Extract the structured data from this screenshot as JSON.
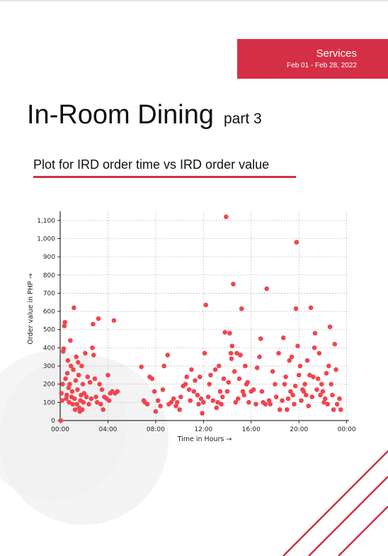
{
  "header": {
    "section": "Services",
    "date_range": "Feb 01 - Feb 28, 2022"
  },
  "page": {
    "title": "In-Room Dining",
    "part": "part 3",
    "subtitle": "Plot for IRD order time vs IRD order value"
  },
  "colors": {
    "accent": "#d42f45",
    "points": "#f0454f"
  },
  "chart_data": {
    "type": "scatter",
    "title": "Plot for IRD order time vs IRD order value",
    "xlabel": "Time in Hours  →",
    "ylabel": "Order value in PHP →",
    "xlim": [
      0,
      24.2
    ],
    "ylim": [
      0,
      1150
    ],
    "x_ticks": [
      "00:00",
      "04:00",
      "08:00",
      "12:00",
      "16:00",
      "20:00",
      "00:00"
    ],
    "y_ticks": [
      0,
      100,
      200,
      300,
      400,
      500,
      600,
      700,
      800,
      900,
      "1,000",
      "1,100"
    ],
    "grid": true,
    "points": [
      [
        0.05,
        0
      ],
      [
        0.1,
        150
      ],
      [
        0.15,
        110
      ],
      [
        0.2,
        200
      ],
      [
        0.25,
        380
      ],
      [
        0.3,
        395
      ],
      [
        0.35,
        520
      ],
      [
        0.4,
        540
      ],
      [
        0.45,
        230
      ],
      [
        0.5,
        120
      ],
      [
        0.55,
        140
      ],
      [
        0.6,
        260
      ],
      [
        0.65,
        330
      ],
      [
        0.7,
        180
      ],
      [
        0.75,
        100
      ],
      [
        0.8,
        200
      ],
      [
        0.85,
        440
      ],
      [
        0.9,
        300
      ],
      [
        0.95,
        130
      ],
      [
        1.0,
        160
      ],
      [
        1.05,
        90
      ],
      [
        1.1,
        280
      ],
      [
        1.15,
        620
      ],
      [
        1.2,
        120
      ],
      [
        1.25,
        60
      ],
      [
        1.3,
        220
      ],
      [
        1.35,
        350
      ],
      [
        1.4,
        90
      ],
      [
        1.45,
        170
      ],
      [
        1.5,
        320
      ],
      [
        1.55,
        250
      ],
      [
        1.6,
        70
      ],
      [
        1.65,
        50
      ],
      [
        1.7,
        110
      ],
      [
        1.75,
        140
      ],
      [
        1.8,
        300
      ],
      [
        1.85,
        60
      ],
      [
        1.9,
        200
      ],
      [
        1.95,
        100
      ],
      [
        2.0,
        150
      ],
      [
        2.1,
        370
      ],
      [
        2.2,
        130
      ],
      [
        2.3,
        240
      ],
      [
        2.4,
        90
      ],
      [
        2.5,
        210
      ],
      [
        2.6,
        120
      ],
      [
        2.7,
        400
      ],
      [
        2.75,
        530
      ],
      [
        2.8,
        360
      ],
      [
        2.9,
        230
      ],
      [
        3.0,
        130
      ],
      [
        3.1,
        100
      ],
      [
        3.2,
        560
      ],
      [
        3.3,
        200
      ],
      [
        3.4,
        90
      ],
      [
        3.5,
        170
      ],
      [
        3.6,
        60
      ],
      [
        3.7,
        130
      ],
      [
        3.9,
        120
      ],
      [
        4.0,
        250
      ],
      [
        4.1,
        110
      ],
      [
        4.2,
        150
      ],
      [
        4.35,
        160
      ],
      [
        4.5,
        550
      ],
      [
        4.6,
        150
      ],
      [
        4.8,
        160
      ],
      [
        6.8,
        295
      ],
      [
        7.0,
        110
      ],
      [
        7.1,
        100
      ],
      [
        7.3,
        90
      ],
      [
        7.5,
        240
      ],
      [
        7.7,
        230
      ],
      [
        7.9,
        160
      ],
      [
        8.0,
        50
      ],
      [
        8.2,
        110
      ],
      [
        8.4,
        80
      ],
      [
        8.6,
        170
      ],
      [
        8.7,
        300
      ],
      [
        9.0,
        360
      ],
      [
        9.1,
        90
      ],
      [
        9.3,
        100
      ],
      [
        9.5,
        120
      ],
      [
        9.7,
        80
      ],
      [
        9.8,
        100
      ],
      [
        10.0,
        60
      ],
      [
        10.1,
        130
      ],
      [
        10.3,
        190
      ],
      [
        10.5,
        200
      ],
      [
        10.6,
        240
      ],
      [
        10.8,
        170
      ],
      [
        10.9,
        110
      ],
      [
        11.0,
        280
      ],
      [
        11.2,
        160
      ],
      [
        11.3,
        220
      ],
      [
        11.5,
        140
      ],
      [
        11.6,
        90
      ],
      [
        11.7,
        240
      ],
      [
        11.8,
        120
      ],
      [
        11.9,
        40
      ],
      [
        12.0,
        100
      ],
      [
        12.1,
        370
      ],
      [
        12.2,
        635
      ],
      [
        12.4,
        130
      ],
      [
        12.5,
        200
      ],
      [
        12.6,
        250
      ],
      [
        12.8,
        110
      ],
      [
        13.0,
        280
      ],
      [
        13.1,
        70
      ],
      [
        13.2,
        100
      ],
      [
        13.3,
        300
      ],
      [
        13.4,
        160
      ],
      [
        13.5,
        90
      ],
      [
        13.6,
        130
      ],
      [
        13.7,
        230
      ],
      [
        13.8,
        485
      ],
      [
        13.9,
        1120
      ],
      [
        14.0,
        160
      ],
      [
        14.1,
        210
      ],
      [
        14.2,
        480
      ],
      [
        14.3,
        370
      ],
      [
        14.35,
        340
      ],
      [
        14.4,
        410
      ],
      [
        14.5,
        750
      ],
      [
        14.6,
        270
      ],
      [
        14.7,
        100
      ],
      [
        14.8,
        370
      ],
      [
        14.9,
        120
      ],
      [
        15.0,
        230
      ],
      [
        15.1,
        360
      ],
      [
        15.2,
        615
      ],
      [
        15.3,
        160
      ],
      [
        15.4,
        140
      ],
      [
        15.5,
        300
      ],
      [
        15.6,
        200
      ],
      [
        15.7,
        210
      ],
      [
        15.8,
        100
      ],
      [
        16.0,
        160
      ],
      [
        16.2,
        170
      ],
      [
        16.4,
        90
      ],
      [
        16.5,
        290
      ],
      [
        16.7,
        350
      ],
      [
        16.8,
        450
      ],
      [
        16.9,
        160
      ],
      [
        17.0,
        100
      ],
      [
        17.2,
        90
      ],
      [
        17.3,
        725
      ],
      [
        17.5,
        110
      ],
      [
        17.6,
        90
      ],
      [
        17.8,
        270
      ],
      [
        18.0,
        200
      ],
      [
        18.1,
        130
      ],
      [
        18.3,
        370
      ],
      [
        18.4,
        60
      ],
      [
        18.6,
        110
      ],
      [
        18.7,
        455
      ],
      [
        18.8,
        200
      ],
      [
        18.9,
        240
      ],
      [
        19.0,
        60
      ],
      [
        19.1,
        120
      ],
      [
        19.2,
        330
      ],
      [
        19.3,
        160
      ],
      [
        19.4,
        350
      ],
      [
        19.5,
        140
      ],
      [
        19.6,
        90
      ],
      [
        19.7,
        190
      ],
      [
        19.75,
        615
      ],
      [
        19.8,
        980
      ],
      [
        19.9,
        410
      ],
      [
        20.0,
        250
      ],
      [
        20.1,
        300
      ],
      [
        20.2,
        110
      ],
      [
        20.3,
        170
      ],
      [
        20.4,
        160
      ],
      [
        20.5,
        200
      ],
      [
        20.6,
        140
      ],
      [
        20.7,
        330
      ],
      [
        20.8,
        80
      ],
      [
        20.9,
        250
      ],
      [
        21.0,
        620
      ],
      [
        21.1,
        130
      ],
      [
        21.2,
        240
      ],
      [
        21.3,
        400
      ],
      [
        21.35,
        480
      ],
      [
        21.5,
        170
      ],
      [
        21.6,
        230
      ],
      [
        21.7,
        370
      ],
      [
        21.8,
        140
      ],
      [
        21.9,
        200
      ],
      [
        22.0,
        160
      ],
      [
        22.1,
        100
      ],
      [
        22.2,
        120
      ],
      [
        22.3,
        260
      ],
      [
        22.4,
        90
      ],
      [
        22.5,
        300
      ],
      [
        22.6,
        515
      ],
      [
        22.7,
        200
      ],
      [
        22.8,
        140
      ],
      [
        22.9,
        60
      ],
      [
        23.0,
        420
      ],
      [
        23.1,
        280
      ],
      [
        23.2,
        90
      ],
      [
        23.4,
        120
      ],
      [
        23.5,
        60
      ]
    ]
  }
}
